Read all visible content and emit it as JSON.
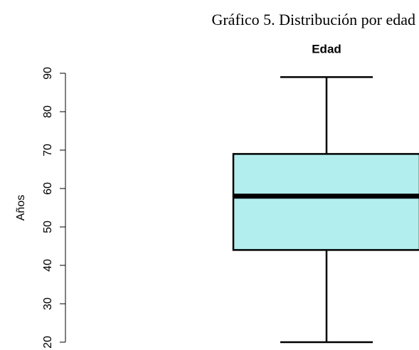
{
  "chart_data": {
    "type": "box",
    "title": "Gráfico 5. Distribución por edad",
    "subtitle": "Edad",
    "y_label": "Años",
    "box": {
      "min": 20,
      "q1": 44,
      "median": 58,
      "q3": 69,
      "max": 89
    },
    "color": "#b2eeee",
    "ylim": [
      20,
      90
    ],
    "yticks": [
      20,
      30,
      40,
      50,
      60,
      70,
      80,
      90
    ]
  }
}
